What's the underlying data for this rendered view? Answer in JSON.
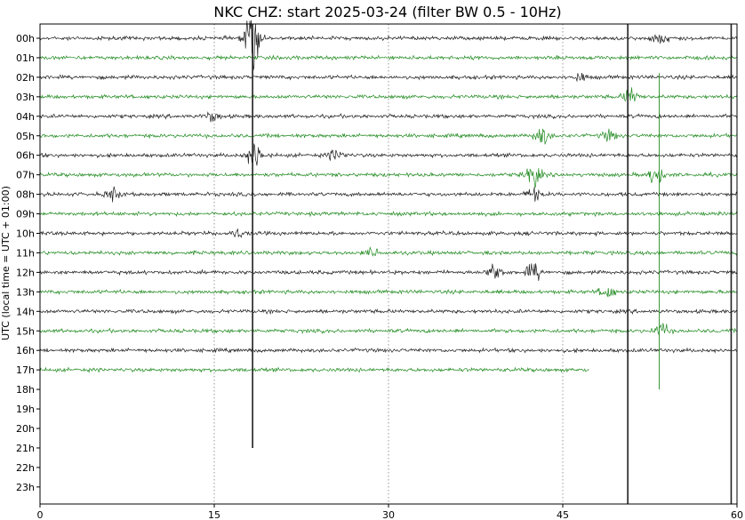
{
  "chart_data": {
    "type": "line",
    "title": "NKC CHZ: start 2025-03-24 (filter BW 0.5 - 10Hz)",
    "ylabel": "UTC (local time = UTC + 01:00)",
    "xlabel": "",
    "xlim": [
      0,
      60
    ],
    "x_ticks": [
      "0",
      "15",
      "30",
      "45",
      "60"
    ],
    "x_tick_values": [
      0,
      15,
      30,
      45,
      60
    ],
    "rows": [
      "00h",
      "01h",
      "02h",
      "03h",
      "04h",
      "05h",
      "06h",
      "07h",
      "08h",
      "09h",
      "10h",
      "11h",
      "12h",
      "13h",
      "14h",
      "15h",
      "16h",
      "17h",
      "18h",
      "19h",
      "20h",
      "21h",
      "22h",
      "23h"
    ],
    "grid": "vertical lines at x ticks",
    "legend": "none",
    "trace_colors": [
      "#202020",
      "#228b22"
    ],
    "trace_end": {
      "row": "17h",
      "minute": 47.3
    },
    "events": [
      {
        "row": "00h",
        "minute": 18.3,
        "amplitude": 3.0
      },
      {
        "row": "00h",
        "minute": 53.5,
        "amplitude": 0.6
      },
      {
        "row": "02h",
        "minute": 46.5,
        "amplitude": 0.4
      },
      {
        "row": "03h",
        "minute": 50.8,
        "amplitude": 0.8
      },
      {
        "row": "04h",
        "minute": 14.8,
        "amplitude": 0.5
      },
      {
        "row": "05h",
        "minute": 43.2,
        "amplitude": 0.9
      },
      {
        "row": "05h",
        "minute": 49.0,
        "amplitude": 0.5
      },
      {
        "row": "06h",
        "minute": 18.5,
        "amplitude": 1.4
      },
      {
        "row": "06h",
        "minute": 25.5,
        "amplitude": 0.6
      },
      {
        "row": "07h",
        "minute": 42.5,
        "amplitude": 1.2
      },
      {
        "row": "07h",
        "minute": 53.0,
        "amplitude": 1.0
      },
      {
        "row": "08h",
        "minute": 6.3,
        "amplitude": 0.6
      },
      {
        "row": "08h",
        "minute": 42.5,
        "amplitude": 0.6
      },
      {
        "row": "10h",
        "minute": 17.0,
        "amplitude": 0.4
      },
      {
        "row": "11h",
        "minute": 28.7,
        "amplitude": 0.4
      },
      {
        "row": "12h",
        "minute": 39.2,
        "amplitude": 0.9
      },
      {
        "row": "12h",
        "minute": 42.5,
        "amplitude": 0.9
      },
      {
        "row": "13h",
        "minute": 48.8,
        "amplitude": 0.7
      },
      {
        "row": "15h",
        "minute": 53.5,
        "amplitude": 0.7
      }
    ],
    "spikes": [
      {
        "row": "00h",
        "minute": 18.3,
        "amplitude": 21.0
      },
      {
        "row": "00h",
        "minute": 50.6,
        "amplitude": 24.0
      },
      {
        "row": "00h",
        "minute": 59.5,
        "amplitude": 24.0
      },
      {
        "row": "03h",
        "minute": 53.3,
        "amplitude": 15.0
      }
    ]
  }
}
